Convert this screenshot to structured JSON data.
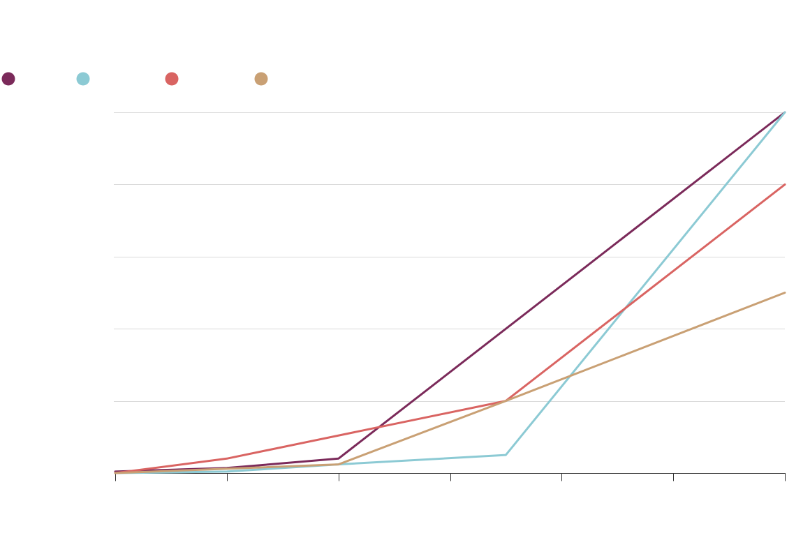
{
  "chart_data": {
    "type": "line",
    "title": "",
    "xlabel": "",
    "ylabel": "",
    "x": [
      0,
      1,
      2,
      3,
      4,
      5,
      6
    ],
    "xlim": [
      0,
      6
    ],
    "ylim": [
      0,
      5
    ],
    "ygrid": [
      1,
      2,
      3,
      4,
      5
    ],
    "grid": true,
    "legend_position": "top-left",
    "series": [
      {
        "color": "#7b2a5a",
        "points": [
          [
            0,
            0.02
          ],
          [
            1,
            0.07
          ],
          [
            2,
            0.2
          ],
          [
            6,
            5.0
          ]
        ]
      },
      {
        "color": "#8ccad4",
        "points": [
          [
            0,
            0.0
          ],
          [
            1,
            0.02
          ],
          [
            2,
            0.12
          ],
          [
            3.5,
            0.25
          ],
          [
            6,
            5.0
          ]
        ]
      },
      {
        "color": "#d96462",
        "points": [
          [
            0,
            0.0
          ],
          [
            1,
            0.2
          ],
          [
            3.5,
            1.0
          ],
          [
            6,
            4.0
          ]
        ]
      },
      {
        "color": "#c9a074",
        "points": [
          [
            0,
            0.0
          ],
          [
            2,
            0.12
          ],
          [
            3.5,
            1.0
          ],
          [
            6,
            2.5
          ]
        ]
      }
    ]
  }
}
